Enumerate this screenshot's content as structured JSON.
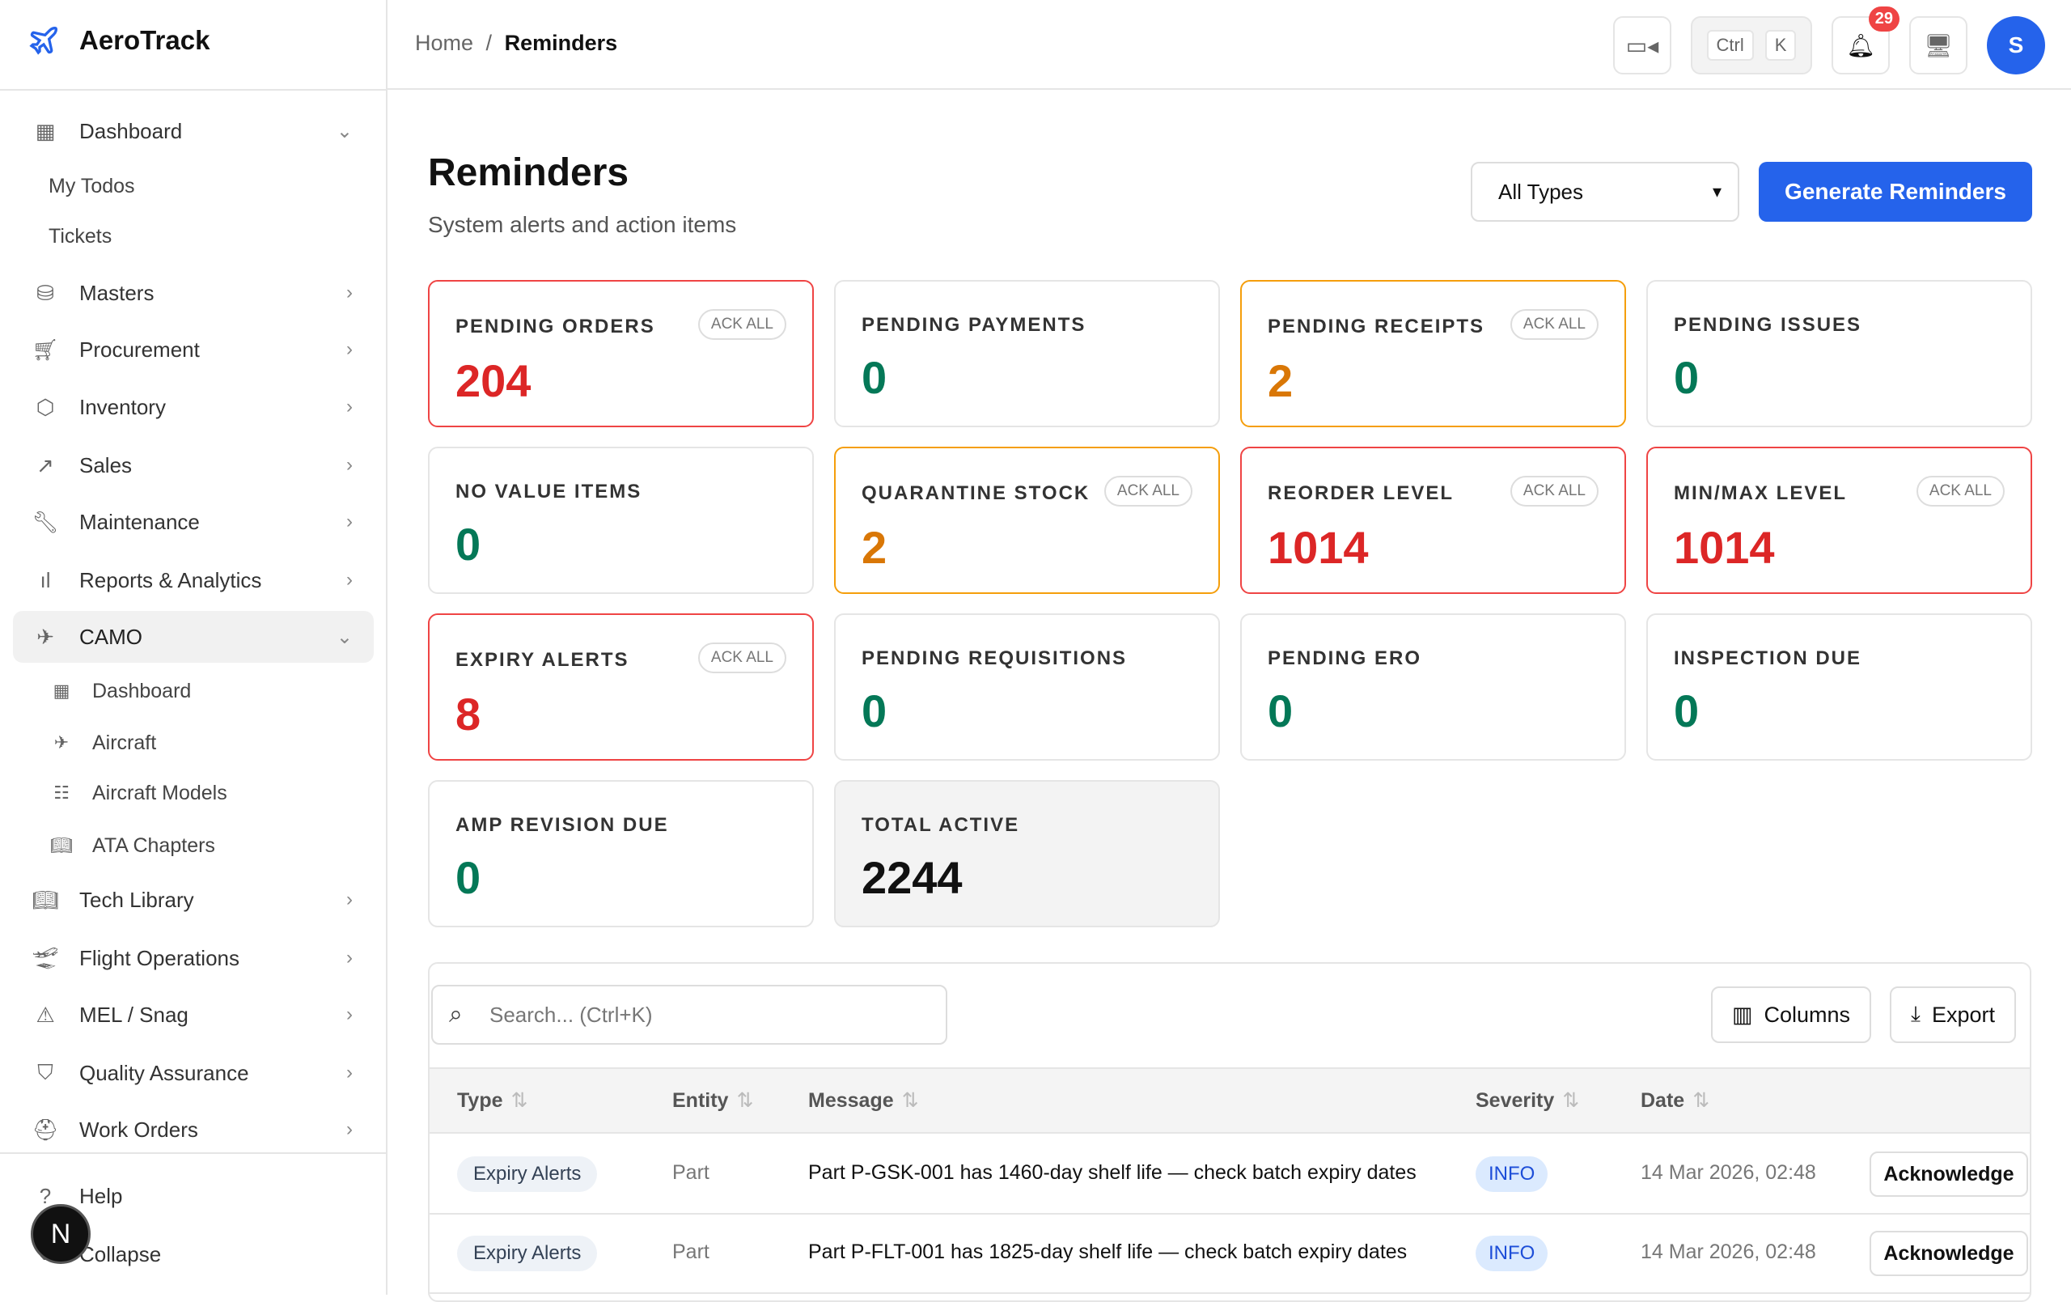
{
  "app": {
    "name": "AeroTrack"
  },
  "breadcrumb": {
    "home": "Home",
    "sep": "/",
    "current": "Reminders"
  },
  "header": {
    "kbd_ctrl": "Ctrl",
    "kbd_k": "K",
    "notifications": "29",
    "avatar": "S"
  },
  "sidebar": {
    "items": [
      {
        "label": "Dashboard",
        "icon": "grid-icon"
      },
      {
        "label": "My Todos"
      },
      {
        "label": "Tickets"
      },
      {
        "label": "Masters",
        "icon": "database-icon"
      },
      {
        "label": "Procurement",
        "icon": "cart-icon"
      },
      {
        "label": "Inventory",
        "icon": "box-icon"
      },
      {
        "label": "Sales",
        "icon": "trend-icon"
      },
      {
        "label": "Maintenance",
        "icon": "wrench-icon"
      },
      {
        "label": "Reports & Analytics",
        "icon": "bar-chart-icon"
      },
      {
        "label": "CAMO",
        "icon": "plane-icon"
      },
      {
        "label": "Dashboard",
        "icon": "grid-icon"
      },
      {
        "label": "Aircraft",
        "icon": "plane-icon"
      },
      {
        "label": "Aircraft Models",
        "icon": "list-icon"
      },
      {
        "label": "ATA Chapters",
        "icon": "book-icon"
      },
      {
        "label": "Tech Library",
        "icon": "book-icon"
      },
      {
        "label": "Flight Operations",
        "icon": "takeoff-icon"
      },
      {
        "label": "MEL / Snag",
        "icon": "warning-icon"
      },
      {
        "label": "Quality Assurance",
        "icon": "shield-icon"
      },
      {
        "label": "Work Orders",
        "icon": "hardhat-icon"
      }
    ],
    "help": "Help",
    "collapse": "Collapse",
    "user_initial": "N"
  },
  "page": {
    "title": "Reminders",
    "subtitle": "System alerts and action items",
    "filter": "All Types",
    "generate": "Generate Reminders"
  },
  "cards": [
    {
      "label": "PENDING ORDERS",
      "value": "204",
      "ack": "ACK ALL"
    },
    {
      "label": "PENDING PAYMENTS",
      "value": "0"
    },
    {
      "label": "PENDING RECEIPTS",
      "value": "2",
      "ack": "ACK ALL"
    },
    {
      "label": "PENDING ISSUES",
      "value": "0"
    },
    {
      "label": "NO VALUE ITEMS",
      "value": "0"
    },
    {
      "label": "QUARANTINE STOCK",
      "value": "2",
      "ack": "ACK ALL"
    },
    {
      "label": "REORDER LEVEL",
      "value": "1014",
      "ack": "ACK ALL"
    },
    {
      "label": "MIN/MAX LEVEL",
      "value": "1014",
      "ack": "ACK ALL"
    },
    {
      "label": "EXPIRY ALERTS",
      "value": "8",
      "ack": "ACK ALL"
    },
    {
      "label": "PENDING REQUISITIONS",
      "value": "0"
    },
    {
      "label": "PENDING ERO",
      "value": "0"
    },
    {
      "label": "INSPECTION DUE",
      "value": "0"
    },
    {
      "label": "AMP REVISION DUE",
      "value": "0"
    },
    {
      "label": "TOTAL ACTIVE",
      "value": "2244"
    }
  ],
  "colors": {
    "red": "#dc2626",
    "green": "#047857",
    "orange": "#d97706",
    "accent": "#2563eb"
  },
  "table": {
    "search_placeholder": "Search... (Ctrl+K)",
    "columns_btn": "Columns",
    "export_btn": "Export",
    "headers": [
      "Type",
      "Entity",
      "Message",
      "Severity",
      "Date"
    ],
    "rows": [
      {
        "type": "Expiry Alerts",
        "entity": "Part",
        "message": "Part P-GSK-001 has 1460-day shelf life — check batch expiry dates",
        "severity": "INFO",
        "date": "14 Mar 2026, 02:48",
        "action": "Acknowledge"
      },
      {
        "type": "Expiry Alerts",
        "entity": "Part",
        "message": "Part P-FLT-001 has 1825-day shelf life — check batch expiry dates",
        "severity": "INFO",
        "date": "14 Mar 2026, 02:48",
        "action": "Acknowledge"
      }
    ]
  }
}
